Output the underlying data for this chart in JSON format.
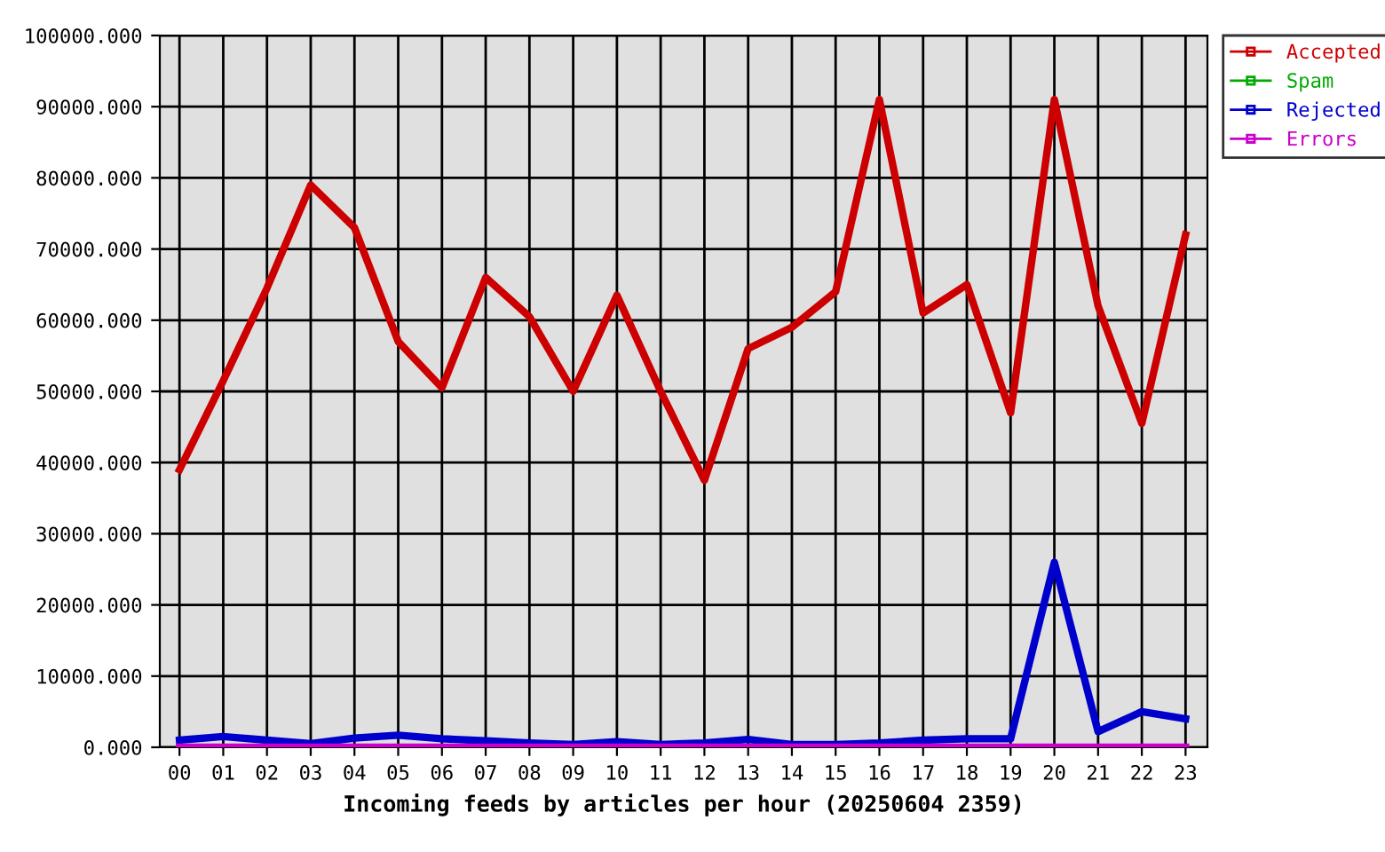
{
  "chart_data": {
    "type": "line",
    "xlabel": "Incoming feeds by articles per hour (20250604 2359)",
    "categories": [
      "00",
      "01",
      "02",
      "03",
      "04",
      "05",
      "06",
      "07",
      "08",
      "09",
      "10",
      "11",
      "12",
      "13",
      "14",
      "15",
      "16",
      "17",
      "18",
      "19",
      "20",
      "21",
      "22",
      "23"
    ],
    "series": [
      {
        "name": "Accepted",
        "color": "#cc0000",
        "values": [
          39000,
          51500,
          64500,
          79000,
          73000,
          57000,
          50500,
          66000,
          60500,
          50000,
          63500,
          50000,
          37500,
          56000,
          59000,
          64000,
          91000,
          61000,
          65000,
          47000,
          91000,
          62000,
          45500,
          72000
        ]
      },
      {
        "name": "Spam",
        "color": "#00aa00",
        "values": [
          null,
          null,
          null,
          null,
          null,
          null,
          null,
          null,
          null,
          null,
          null,
          null,
          null,
          null,
          null,
          null,
          null,
          null,
          null,
          null,
          null,
          null,
          null,
          null
        ]
      },
      {
        "name": "Rejected",
        "color": "#0000cc",
        "values": [
          1000,
          1500,
          1000,
          500,
          1300,
          1700,
          1200,
          900,
          600,
          400,
          800,
          400,
          600,
          1100,
          400,
          400,
          600,
          1000,
          1200,
          1200,
          26000,
          2200,
          5000,
          4000
        ]
      },
      {
        "name": "Errors",
        "color": "#cc00cc",
        "values": [
          0,
          0,
          0,
          0,
          0,
          0,
          0,
          0,
          0,
          0,
          0,
          0,
          0,
          0,
          0,
          0,
          0,
          0,
          0,
          0,
          0,
          0,
          0,
          0
        ]
      }
    ],
    "ylim": [
      0,
      100000
    ],
    "yticks": [
      {
        "value": 0,
        "label": "0.000"
      },
      {
        "value": 10000,
        "label": "10000.000"
      },
      {
        "value": 20000,
        "label": "20000.000"
      },
      {
        "value": 30000,
        "label": "30000.000"
      },
      {
        "value": 40000,
        "label": "40000.000"
      },
      {
        "value": 50000,
        "label": "50000.000"
      },
      {
        "value": 60000,
        "label": "60000.000"
      },
      {
        "value": 70000,
        "label": "70000.000"
      },
      {
        "value": 80000,
        "label": "80000.000"
      },
      {
        "value": 90000,
        "label": "90000.000"
      },
      {
        "value": 100000,
        "label": "100000.000"
      }
    ],
    "grid": true,
    "legend": "top right"
  }
}
